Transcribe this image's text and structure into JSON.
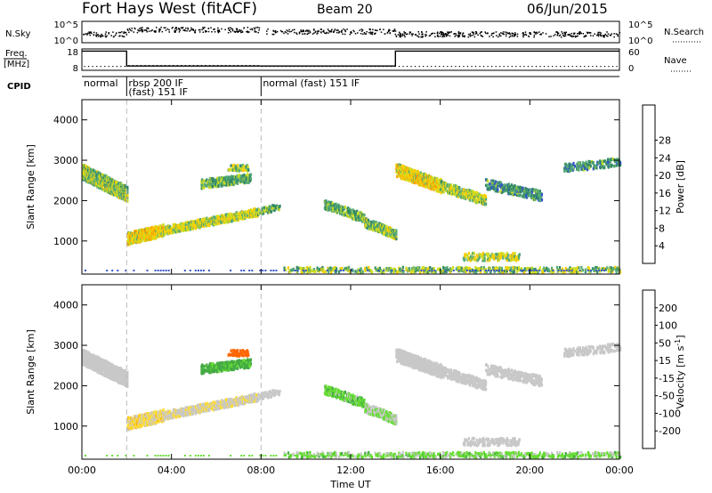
{
  "header": {
    "title": "Fort Hays West (fitACF)",
    "beam": "Beam 20",
    "date": "06/Jun/2015"
  },
  "nsky_panel": {
    "left_label": "N.Sky",
    "right_label": "N.Search",
    "left_ticks": [
      "10^5",
      "10^0"
    ],
    "right_ticks": [
      "10^5",
      "10^0"
    ]
  },
  "freq_panel": {
    "left_label_line1": "Freq.",
    "left_label_line2": "[MHz]",
    "right_label": "Nave",
    "left_ticks": [
      "18",
      "8"
    ],
    "right_ticks": [
      "60",
      "0"
    ],
    "freq_levels": [
      {
        "t_start": 0,
        "t_end": 2,
        "mhz": 17
      },
      {
        "t_start": 2,
        "t_end": 14,
        "mhz": 10
      },
      {
        "t_start": 14,
        "t_end": 24,
        "mhz": 17
      }
    ]
  },
  "cpid_panel": {
    "label": "CPID",
    "entries": [
      {
        "t": 0,
        "line1": "normal",
        "line2": ""
      },
      {
        "t": 2,
        "line1": "rbsp 200 IF",
        "line2": "(fast) 151 IF"
      },
      {
        "t": 8,
        "line1": "normal (fast) 151 IF",
        "line2": ""
      }
    ]
  },
  "x_axis": {
    "label": "Time UT",
    "ticks": [
      "00:00",
      "04:00",
      "08:00",
      "12:00",
      "16:00",
      "20:00",
      "00:00"
    ]
  },
  "power_panel": {
    "ylabel": "Slant Range [km]",
    "yticks": [
      "1000",
      "2000",
      "3000",
      "4000"
    ],
    "colorbar_label": "Power [dB]",
    "colorbar_ticks": [
      "4",
      "8",
      "12",
      "16",
      "20",
      "24",
      "28"
    ],
    "colors": [
      "#0000ff",
      "#3355cc",
      "#338866",
      "#55aa77",
      "#ccdd22",
      "#ffcc00",
      "#ff9900",
      "#ff5500",
      "#ff0000"
    ]
  },
  "velocity_panel": {
    "ylabel": "Slant Range [km]",
    "yticks": [
      "1000",
      "2000",
      "3000",
      "4000"
    ],
    "colorbar_label_main": "Velocity [m s",
    "colorbar_label_sup": "-1",
    "colorbar_label_end": "]",
    "colorbar_ticks": [
      "200",
      "100",
      "50",
      "15",
      "-15",
      "-50",
      "-100",
      "-200"
    ],
    "colors": [
      "#2233bb",
      "#336644",
      "#44aa44",
      "#66dd33",
      "#c8c8c8",
      "#ffdd33",
      "#ffaa00",
      "#ff6600",
      "#ff0000"
    ]
  },
  "chart_data": {
    "type": "heatmap",
    "title": "Fort Hays West (fitACF)",
    "xlabel": "Time UT",
    "ylabel": "Slant Range [km]",
    "xlim": [
      0,
      24
    ],
    "ylim": [
      180,
      4500
    ],
    "xticks_hours": [
      0,
      4,
      8,
      12,
      16,
      20,
      24
    ],
    "yticks_km": [
      1000,
      2000,
      3000,
      4000
    ],
    "vlines_hours": [
      2,
      8
    ],
    "echo_regions": [
      {
        "t_start": 0.0,
        "t_end": 2.0,
        "r_start": 2700,
        "r_end": 2150,
        "width_km": 380,
        "density": 0.9,
        "power_dB": 14,
        "velocity": 0
      },
      {
        "t_start": 2.0,
        "t_end": 3.6,
        "r_start": 1050,
        "r_end": 1250,
        "width_km": 300,
        "density": 0.85,
        "power_dB": 18,
        "velocity": -20
      },
      {
        "t_start": 3.6,
        "t_end": 7.8,
        "r_start": 1250,
        "r_end": 1700,
        "width_km": 200,
        "density": 0.8,
        "power_dB": 16,
        "velocity": -10
      },
      {
        "t_start": 7.8,
        "t_end": 8.8,
        "r_start": 1700,
        "r_end": 1850,
        "width_km": 150,
        "density": 0.5,
        "power_dB": 12,
        "velocity": 0
      },
      {
        "t_start": 5.3,
        "t_end": 7.5,
        "r_start": 2400,
        "r_end": 2550,
        "width_km": 220,
        "density": 0.55,
        "power_dB": 12,
        "velocity": 40
      },
      {
        "t_start": 6.5,
        "t_end": 7.4,
        "r_start": 2800,
        "r_end": 2800,
        "width_km": 140,
        "density": 0.5,
        "power_dB": 14,
        "velocity": -120
      },
      {
        "t_start": 10.8,
        "t_end": 12.6,
        "r_start": 1900,
        "r_end": 1550,
        "width_km": 230,
        "density": 0.6,
        "power_dB": 12,
        "velocity": 25
      },
      {
        "t_start": 12.6,
        "t_end": 14.0,
        "r_start": 1450,
        "r_end": 1150,
        "width_km": 230,
        "density": 0.75,
        "power_dB": 14,
        "velocity": 15
      },
      {
        "t_start": 14.0,
        "t_end": 16.0,
        "r_start": 2750,
        "r_end": 2350,
        "width_km": 320,
        "density": 0.8,
        "power_dB": 18,
        "velocity": 0
      },
      {
        "t_start": 16.0,
        "t_end": 18.0,
        "r_start": 2350,
        "r_end": 2000,
        "width_km": 250,
        "density": 0.55,
        "power_dB": 15,
        "velocity": 0
      },
      {
        "t_start": 18.0,
        "t_end": 20.5,
        "r_start": 2400,
        "r_end": 2100,
        "width_km": 250,
        "density": 0.4,
        "power_dB": 10,
        "velocity": 0
      },
      {
        "t_start": 21.5,
        "t_end": 24.0,
        "r_start": 2800,
        "r_end": 2950,
        "width_km": 200,
        "density": 0.4,
        "power_dB": 10,
        "velocity": 0
      },
      {
        "t_start": 17.0,
        "t_end": 19.5,
        "r_start": 600,
        "r_end": 600,
        "width_km": 180,
        "density": 0.4,
        "power_dB": 16,
        "velocity": 0
      },
      {
        "t_start": 9.0,
        "t_end": 24.0,
        "r_start": 280,
        "r_end": 280,
        "width_km": 120,
        "density": 0.3,
        "power_dB": 14,
        "velocity": 20
      }
    ]
  }
}
